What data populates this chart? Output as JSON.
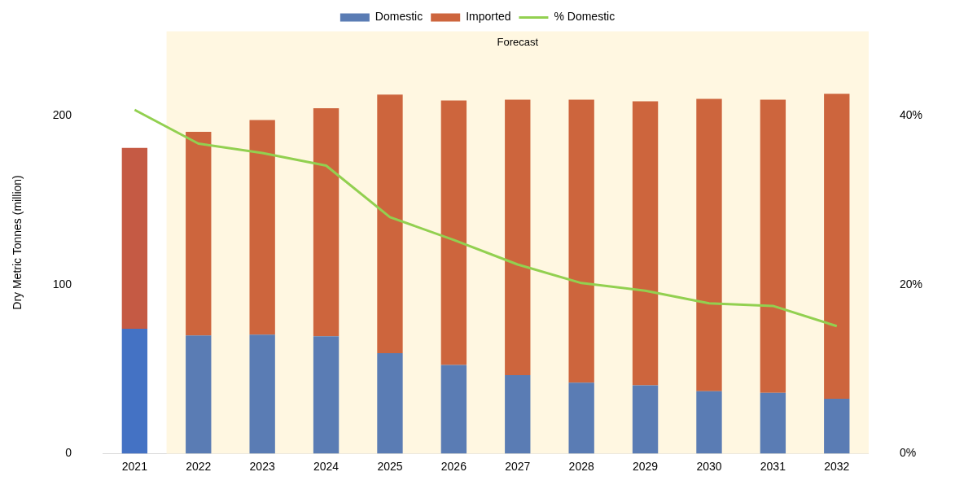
{
  "chart_data": {
    "type": "bar",
    "stacked": true,
    "ylabel": "Dry Metric Tonnes (million)",
    "categories": [
      "2021",
      "2022",
      "2023",
      "2024",
      "2025",
      "2026",
      "2027",
      "2028",
      "2029",
      "2030",
      "2031",
      "2032"
    ],
    "series": [
      {
        "name": "Domestic",
        "color": "#5a7cb4",
        "colors": [
          "#4472c4",
          "#5a7cb4",
          "#5a7cb4",
          "#5a7cb4",
          "#5a7cb4",
          "#5a7cb4",
          "#5a7cb4",
          "#5a7cb4",
          "#5a7cb4",
          "#5a7cb4",
          "#5a7cb4",
          "#5a7cb4"
        ],
        "values": [
          74,
          70,
          70.5,
          69.5,
          59.5,
          52.5,
          46.5,
          42,
          40.5,
          37,
          36,
          32.5
        ]
      },
      {
        "name": "Imported",
        "color": "#cd653d",
        "colors": [
          "#c55a44",
          "#cd653d",
          "#cd653d",
          "#cd653d",
          "#cd653d",
          "#cd653d",
          "#cd653d",
          "#cd653d",
          "#cd653d",
          "#cd653d",
          "#cd653d",
          "#cd653d"
        ],
        "values": [
          107,
          120.5,
          127,
          135,
          153,
          156.5,
          163,
          167.5,
          168,
          173,
          173.5,
          180.5
        ]
      },
      {
        "name": "% Domestic",
        "type": "line",
        "axis": "y2",
        "color": "#92d050",
        "values": [
          40.7,
          36.7,
          35.6,
          34.1,
          28,
          25.3,
          22.4,
          20.2,
          19.3,
          17.8,
          17.5,
          15.1
        ]
      }
    ],
    "ylim": [
      0,
      250
    ],
    "yticks": [
      0,
      100,
      200
    ],
    "y2lim": [
      0,
      50
    ],
    "y2ticks": [
      {
        "value": 0,
        "label": "0%"
      },
      {
        "value": 20,
        "label": "20%"
      },
      {
        "value": 40,
        "label": "40%"
      }
    ],
    "bands": [
      {
        "axis": "x",
        "from": "2022",
        "to": "2032",
        "label": "Forecast",
        "color": "#fff7e1"
      }
    ],
    "legend": "top",
    "grid": false,
    "marker": "none"
  }
}
